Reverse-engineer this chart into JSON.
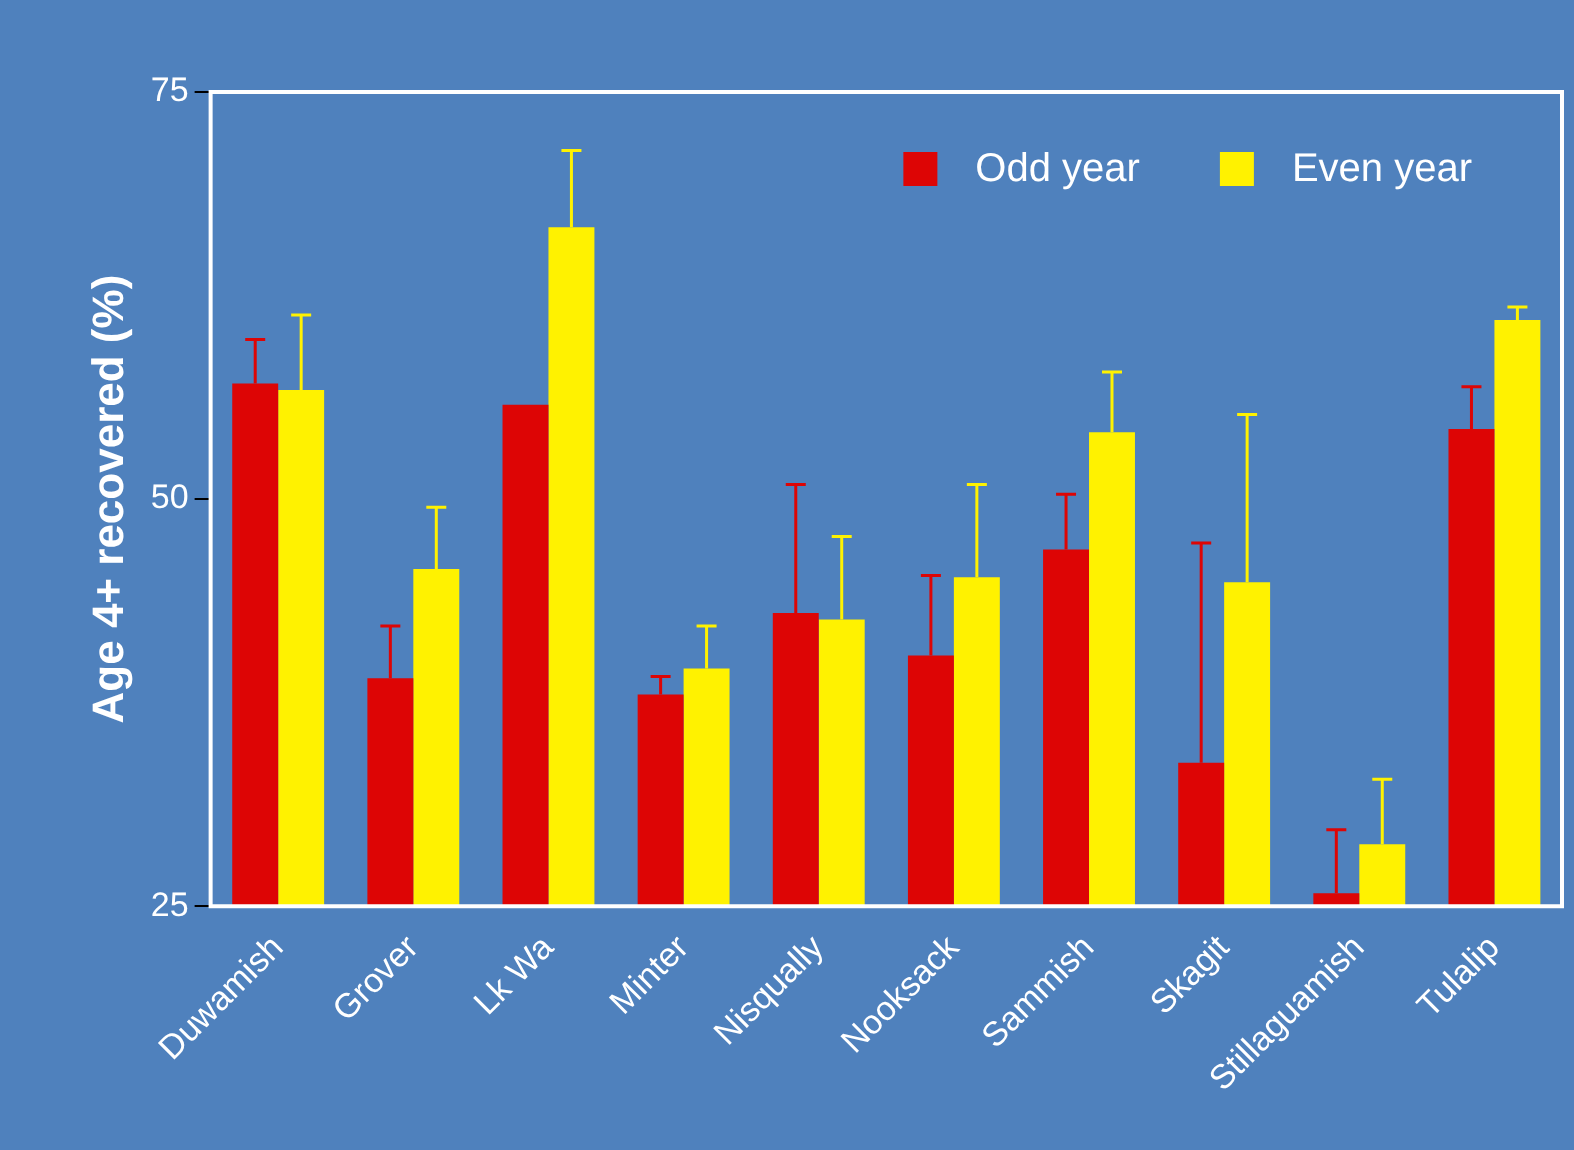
{
  "chart_data": {
    "type": "bar",
    "ylabel": "Age 4+ recovered (%)",
    "categories": [
      "Duwamish",
      "Grover",
      "Lk Wa",
      "Minter",
      "Nisqually",
      "Nooksack",
      "Sammish",
      "Skagit",
      "Stillaguamish",
      "Tulalip"
    ],
    "series": [
      {
        "name": "Odd year",
        "color": "#dd0505",
        "values": [
          57.1,
          39.0,
          55.8,
          38.0,
          43.0,
          40.4,
          46.9,
          33.8,
          25.8,
          54.3
        ],
        "errors": [
          [
            57.1,
            59.8
          ],
          [
            39.0,
            42.2
          ],
          null,
          [
            38.0,
            39.1
          ],
          [
            43.0,
            50.9
          ],
          [
            40.4,
            45.3
          ],
          [
            46.9,
            50.3
          ],
          [
            33.8,
            47.3
          ],
          [
            25.8,
            29.7
          ],
          [
            54.3,
            56.9
          ]
        ]
      },
      {
        "name": "Even year",
        "color": "#fff200",
        "values": [
          56.7,
          45.7,
          66.7,
          39.6,
          42.6,
          45.2,
          54.1,
          44.9,
          28.8,
          61.0
        ],
        "errors": [
          [
            56.7,
            61.3
          ],
          [
            45.7,
            49.5
          ],
          [
            66.7,
            71.4
          ],
          [
            39.6,
            42.2
          ],
          [
            42.6,
            47.7
          ],
          [
            45.2,
            50.9
          ],
          [
            54.1,
            57.8
          ],
          [
            44.9,
            55.2
          ],
          [
            28.8,
            32.8
          ],
          [
            61.0,
            61.8
          ]
        ]
      }
    ],
    "ylim": [
      25,
      75
    ],
    "yticks": [
      25,
      50,
      75
    ],
    "grid": false,
    "legend": "top right"
  }
}
